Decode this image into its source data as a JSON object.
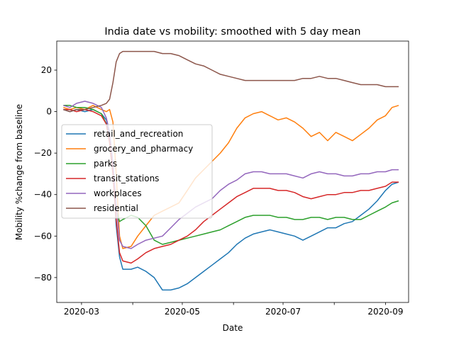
{
  "chart_data": {
    "type": "line",
    "title": "India date vs mobility: smoothed with 5 day mean",
    "xlabel": "Date",
    "ylabel": "Mobility %change from baseline",
    "x_range": [
      "2020-02-15",
      "2020-09-15"
    ],
    "ylim": [
      -92,
      34
    ],
    "x_ticks": [
      "2020-03-01",
      "2020-04-01",
      "2020-05-01",
      "2020-06-01",
      "2020-07-01",
      "2020-08-01",
      "2020-09-01"
    ],
    "x_tick_labels": [
      "2020-03",
      "",
      "2020-05",
      "",
      "2020-07",
      "",
      "2020-09"
    ],
    "y_ticks": [
      -80,
      -60,
      -40,
      -20,
      0,
      20
    ],
    "y_tick_labels": [
      "−80",
      "−60",
      "−40",
      "−20",
      "0",
      "20"
    ],
    "grid": false,
    "legend_position": "center-left",
    "series": [
      {
        "name": "retail_and_recreation",
        "color": "#1f77b4",
        "points": [
          [
            "2020-02-19",
            1
          ],
          [
            "2020-02-23",
            0
          ],
          [
            "2020-02-27",
            1
          ],
          [
            "2020-03-03",
            0
          ],
          [
            "2020-03-08",
            1
          ],
          [
            "2020-03-13",
            -1
          ],
          [
            "2020-03-16",
            -4
          ],
          [
            "2020-03-18",
            -12
          ],
          [
            "2020-03-20",
            -28
          ],
          [
            "2020-03-22",
            -55
          ],
          [
            "2020-03-24",
            -70
          ],
          [
            "2020-03-26",
            -76
          ],
          [
            "2020-03-31",
            -76
          ],
          [
            "2020-04-04",
            -75
          ],
          [
            "2020-04-09",
            -77
          ],
          [
            "2020-04-14",
            -80
          ],
          [
            "2020-04-19",
            -86
          ],
          [
            "2020-04-24",
            -86
          ],
          [
            "2020-04-29",
            -85
          ],
          [
            "2020-05-04",
            -83
          ],
          [
            "2020-05-09",
            -80
          ],
          [
            "2020-05-14",
            -77
          ],
          [
            "2020-05-19",
            -74
          ],
          [
            "2020-05-24",
            -71
          ],
          [
            "2020-05-29",
            -68
          ],
          [
            "2020-06-03",
            -64
          ],
          [
            "2020-06-08",
            -61
          ],
          [
            "2020-06-13",
            -59
          ],
          [
            "2020-06-18",
            -58
          ],
          [
            "2020-06-23",
            -57
          ],
          [
            "2020-06-28",
            -58
          ],
          [
            "2020-07-03",
            -59
          ],
          [
            "2020-07-08",
            -60
          ],
          [
            "2020-07-13",
            -62
          ],
          [
            "2020-07-18",
            -60
          ],
          [
            "2020-07-23",
            -58
          ],
          [
            "2020-07-28",
            -56
          ],
          [
            "2020-08-02",
            -56
          ],
          [
            "2020-08-07",
            -54
          ],
          [
            "2020-08-12",
            -53
          ],
          [
            "2020-08-17",
            -50
          ],
          [
            "2020-08-22",
            -47
          ],
          [
            "2020-08-27",
            -43
          ],
          [
            "2020-09-01",
            -38
          ],
          [
            "2020-09-05",
            -35
          ],
          [
            "2020-09-09",
            -34
          ]
        ]
      },
      {
        "name": "grocery_and_pharmacy",
        "color": "#ff7f0e",
        "points": [
          [
            "2020-02-19",
            2
          ],
          [
            "2020-02-23",
            1
          ],
          [
            "2020-02-27",
            2
          ],
          [
            "2020-03-03",
            1
          ],
          [
            "2020-03-08",
            3
          ],
          [
            "2020-03-13",
            1
          ],
          [
            "2020-03-16",
            0
          ],
          [
            "2020-03-18",
            1
          ],
          [
            "2020-03-20",
            -5
          ],
          [
            "2020-03-22",
            -30
          ],
          [
            "2020-03-24",
            -60
          ],
          [
            "2020-03-26",
            -66
          ],
          [
            "2020-03-31",
            -65
          ],
          [
            "2020-04-04",
            -60
          ],
          [
            "2020-04-09",
            -55
          ],
          [
            "2020-04-14",
            -50
          ],
          [
            "2020-04-19",
            -48
          ],
          [
            "2020-04-24",
            -46
          ],
          [
            "2020-04-29",
            -44
          ],
          [
            "2020-05-04",
            -38
          ],
          [
            "2020-05-09",
            -32
          ],
          [
            "2020-05-14",
            -28
          ],
          [
            "2020-05-19",
            -24
          ],
          [
            "2020-05-24",
            -20
          ],
          [
            "2020-05-29",
            -15
          ],
          [
            "2020-06-03",
            -8
          ],
          [
            "2020-06-08",
            -3
          ],
          [
            "2020-06-13",
            -1
          ],
          [
            "2020-06-18",
            0
          ],
          [
            "2020-06-23",
            -2
          ],
          [
            "2020-06-28",
            -4
          ],
          [
            "2020-07-03",
            -3
          ],
          [
            "2020-07-08",
            -5
          ],
          [
            "2020-07-13",
            -8
          ],
          [
            "2020-07-18",
            -12
          ],
          [
            "2020-07-23",
            -10
          ],
          [
            "2020-07-28",
            -14
          ],
          [
            "2020-08-02",
            -10
          ],
          [
            "2020-08-07",
            -12
          ],
          [
            "2020-08-12",
            -14
          ],
          [
            "2020-08-17",
            -11
          ],
          [
            "2020-08-22",
            -8
          ],
          [
            "2020-08-27",
            -4
          ],
          [
            "2020-09-01",
            -2
          ],
          [
            "2020-09-05",
            2
          ],
          [
            "2020-09-09",
            3
          ]
        ]
      },
      {
        "name": "parks",
        "color": "#2ca02c",
        "points": [
          [
            "2020-02-19",
            3
          ],
          [
            "2020-02-23",
            3
          ],
          [
            "2020-02-27",
            2
          ],
          [
            "2020-03-03",
            2
          ],
          [
            "2020-03-08",
            1
          ],
          [
            "2020-03-13",
            -1
          ],
          [
            "2020-03-16",
            -6
          ],
          [
            "2020-03-18",
            -15
          ],
          [
            "2020-03-20",
            -30
          ],
          [
            "2020-03-22",
            -47
          ],
          [
            "2020-03-24",
            -53
          ],
          [
            "2020-03-26",
            -52
          ],
          [
            "2020-03-31",
            -50
          ],
          [
            "2020-04-04",
            -51
          ],
          [
            "2020-04-09",
            -55
          ],
          [
            "2020-04-14",
            -62
          ],
          [
            "2020-04-19",
            -64
          ],
          [
            "2020-04-24",
            -63
          ],
          [
            "2020-04-29",
            -62
          ],
          [
            "2020-05-04",
            -61
          ],
          [
            "2020-05-09",
            -60
          ],
          [
            "2020-05-14",
            -59
          ],
          [
            "2020-05-19",
            -58
          ],
          [
            "2020-05-24",
            -57
          ],
          [
            "2020-05-29",
            -55
          ],
          [
            "2020-06-03",
            -53
          ],
          [
            "2020-06-08",
            -51
          ],
          [
            "2020-06-13",
            -50
          ],
          [
            "2020-06-18",
            -50
          ],
          [
            "2020-06-23",
            -50
          ],
          [
            "2020-06-28",
            -51
          ],
          [
            "2020-07-03",
            -51
          ],
          [
            "2020-07-08",
            -52
          ],
          [
            "2020-07-13",
            -52
          ],
          [
            "2020-07-18",
            -51
          ],
          [
            "2020-07-23",
            -51
          ],
          [
            "2020-07-28",
            -52
          ],
          [
            "2020-08-02",
            -51
          ],
          [
            "2020-08-07",
            -51
          ],
          [
            "2020-08-12",
            -52
          ],
          [
            "2020-08-17",
            -52
          ],
          [
            "2020-08-22",
            -50
          ],
          [
            "2020-08-27",
            -48
          ],
          [
            "2020-09-01",
            -46
          ],
          [
            "2020-09-05",
            -44
          ],
          [
            "2020-09-09",
            -43
          ]
        ]
      },
      {
        "name": "transit_stations",
        "color": "#d62728",
        "points": [
          [
            "2020-02-19",
            1
          ],
          [
            "2020-02-23",
            1
          ],
          [
            "2020-02-27",
            0
          ],
          [
            "2020-03-03",
            1
          ],
          [
            "2020-03-08",
            0
          ],
          [
            "2020-03-13",
            -2
          ],
          [
            "2020-03-16",
            -6
          ],
          [
            "2020-03-18",
            -15
          ],
          [
            "2020-03-20",
            -30
          ],
          [
            "2020-03-22",
            -52
          ],
          [
            "2020-03-24",
            -68
          ],
          [
            "2020-03-26",
            -72
          ],
          [
            "2020-03-31",
            -73
          ],
          [
            "2020-04-04",
            -71
          ],
          [
            "2020-04-09",
            -68
          ],
          [
            "2020-04-14",
            -66
          ],
          [
            "2020-04-19",
            -65
          ],
          [
            "2020-04-24",
            -64
          ],
          [
            "2020-04-29",
            -62
          ],
          [
            "2020-05-04",
            -60
          ],
          [
            "2020-05-09",
            -57
          ],
          [
            "2020-05-14",
            -53
          ],
          [
            "2020-05-19",
            -50
          ],
          [
            "2020-05-24",
            -47
          ],
          [
            "2020-05-29",
            -44
          ],
          [
            "2020-06-03",
            -41
          ],
          [
            "2020-06-08",
            -39
          ],
          [
            "2020-06-13",
            -37
          ],
          [
            "2020-06-18",
            -37
          ],
          [
            "2020-06-23",
            -37
          ],
          [
            "2020-06-28",
            -38
          ],
          [
            "2020-07-03",
            -38
          ],
          [
            "2020-07-08",
            -39
          ],
          [
            "2020-07-13",
            -41
          ],
          [
            "2020-07-18",
            -42
          ],
          [
            "2020-07-23",
            -41
          ],
          [
            "2020-07-28",
            -40
          ],
          [
            "2020-08-02",
            -40
          ],
          [
            "2020-08-07",
            -39
          ],
          [
            "2020-08-12",
            -39
          ],
          [
            "2020-08-17",
            -38
          ],
          [
            "2020-08-22",
            -38
          ],
          [
            "2020-08-27",
            -37
          ],
          [
            "2020-09-01",
            -36
          ],
          [
            "2020-09-05",
            -34
          ],
          [
            "2020-09-09",
            -34
          ]
        ]
      },
      {
        "name": "workplaces",
        "color": "#9467bd",
        "points": [
          [
            "2020-02-19",
            3
          ],
          [
            "2020-02-23",
            2
          ],
          [
            "2020-02-27",
            4
          ],
          [
            "2020-03-03",
            5
          ],
          [
            "2020-03-08",
            4
          ],
          [
            "2020-03-13",
            2
          ],
          [
            "2020-03-16",
            -3
          ],
          [
            "2020-03-18",
            -10
          ],
          [
            "2020-03-20",
            -25
          ],
          [
            "2020-03-22",
            -45
          ],
          [
            "2020-03-24",
            -62
          ],
          [
            "2020-03-26",
            -65
          ],
          [
            "2020-03-31",
            -66
          ],
          [
            "2020-04-04",
            -64
          ],
          [
            "2020-04-09",
            -62
          ],
          [
            "2020-04-14",
            -61
          ],
          [
            "2020-04-19",
            -60
          ],
          [
            "2020-04-24",
            -56
          ],
          [
            "2020-04-29",
            -52
          ],
          [
            "2020-05-04",
            -49
          ],
          [
            "2020-05-09",
            -46
          ],
          [
            "2020-05-14",
            -44
          ],
          [
            "2020-05-19",
            -42
          ],
          [
            "2020-05-24",
            -38
          ],
          [
            "2020-05-29",
            -35
          ],
          [
            "2020-06-03",
            -33
          ],
          [
            "2020-06-08",
            -30
          ],
          [
            "2020-06-13",
            -29
          ],
          [
            "2020-06-18",
            -29
          ],
          [
            "2020-06-23",
            -30
          ],
          [
            "2020-06-28",
            -30
          ],
          [
            "2020-07-03",
            -30
          ],
          [
            "2020-07-08",
            -31
          ],
          [
            "2020-07-13",
            -32
          ],
          [
            "2020-07-18",
            -30
          ],
          [
            "2020-07-23",
            -29
          ],
          [
            "2020-07-28",
            -30
          ],
          [
            "2020-08-02",
            -30
          ],
          [
            "2020-08-07",
            -31
          ],
          [
            "2020-08-12",
            -31
          ],
          [
            "2020-08-17",
            -30
          ],
          [
            "2020-08-22",
            -30
          ],
          [
            "2020-08-27",
            -29
          ],
          [
            "2020-09-01",
            -29
          ],
          [
            "2020-09-05",
            -28
          ],
          [
            "2020-09-09",
            -28
          ]
        ]
      },
      {
        "name": "residential",
        "color": "#8c564b",
        "points": [
          [
            "2020-02-19",
            1
          ],
          [
            "2020-02-23",
            0
          ],
          [
            "2020-02-27",
            1
          ],
          [
            "2020-03-03",
            1
          ],
          [
            "2020-03-08",
            2
          ],
          [
            "2020-03-13",
            3
          ],
          [
            "2020-03-16",
            4
          ],
          [
            "2020-03-18",
            6
          ],
          [
            "2020-03-20",
            14
          ],
          [
            "2020-03-22",
            24
          ],
          [
            "2020-03-24",
            28
          ],
          [
            "2020-03-26",
            29
          ],
          [
            "2020-03-31",
            29
          ],
          [
            "2020-04-04",
            29
          ],
          [
            "2020-04-09",
            29
          ],
          [
            "2020-04-14",
            29
          ],
          [
            "2020-04-19",
            28
          ],
          [
            "2020-04-24",
            28
          ],
          [
            "2020-04-29",
            27
          ],
          [
            "2020-05-04",
            25
          ],
          [
            "2020-05-09",
            23
          ],
          [
            "2020-05-14",
            22
          ],
          [
            "2020-05-19",
            20
          ],
          [
            "2020-05-24",
            18
          ],
          [
            "2020-05-29",
            17
          ],
          [
            "2020-06-03",
            16
          ],
          [
            "2020-06-08",
            15
          ],
          [
            "2020-06-13",
            15
          ],
          [
            "2020-06-18",
            15
          ],
          [
            "2020-06-23",
            15
          ],
          [
            "2020-06-28",
            15
          ],
          [
            "2020-07-03",
            15
          ],
          [
            "2020-07-08",
            15
          ],
          [
            "2020-07-13",
            16
          ],
          [
            "2020-07-18",
            16
          ],
          [
            "2020-07-23",
            17
          ],
          [
            "2020-07-28",
            16
          ],
          [
            "2020-08-02",
            16
          ],
          [
            "2020-08-07",
            15
          ],
          [
            "2020-08-12",
            14
          ],
          [
            "2020-08-17",
            13
          ],
          [
            "2020-08-22",
            13
          ],
          [
            "2020-08-27",
            13
          ],
          [
            "2020-09-01",
            12
          ],
          [
            "2020-09-05",
            12
          ],
          [
            "2020-09-09",
            12
          ]
        ]
      }
    ]
  }
}
